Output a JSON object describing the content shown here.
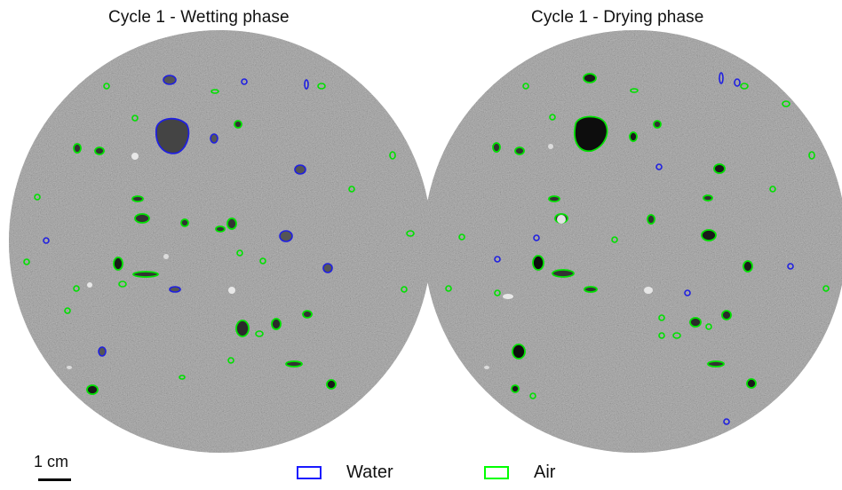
{
  "panels": [
    {
      "title": "Cycle 1 - Wetting phase"
    },
    {
      "title": "Cycle 1 - Drying phase"
    }
  ],
  "scale_bar": {
    "label": "1 cm"
  },
  "legend": [
    {
      "label": "Water",
      "color": "#1a1aff"
    },
    {
      "label": "Air",
      "color": "#00ff00"
    }
  ],
  "colors": {
    "background": "#ffffff",
    "specimen_gray": "#8c8c8c",
    "pore_dark": "#1a1a1a"
  }
}
